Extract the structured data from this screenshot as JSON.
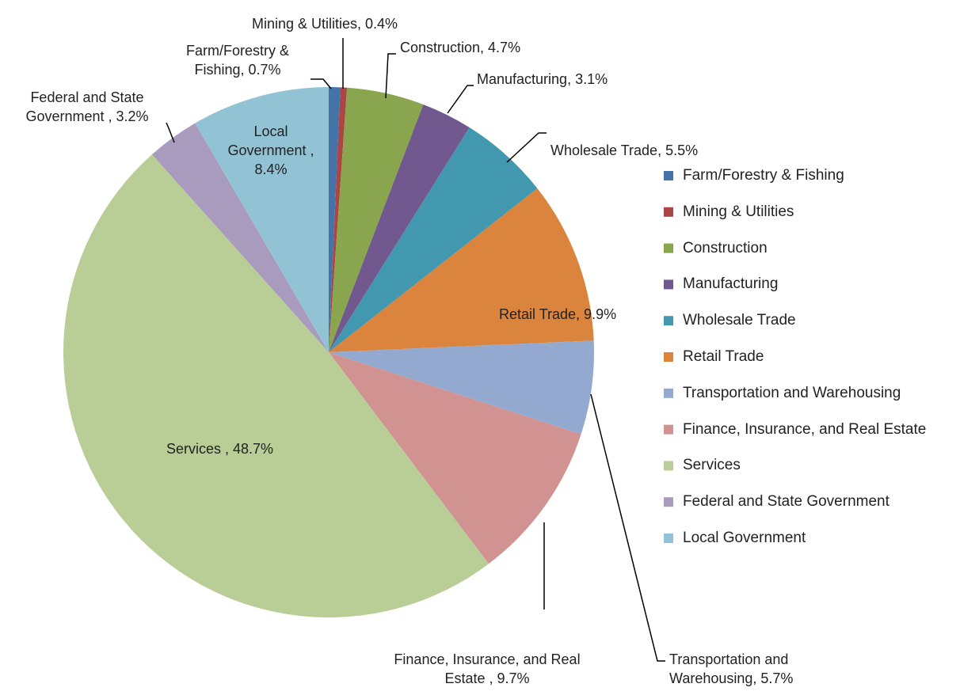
{
  "chart_data": {
    "type": "pie",
    "categories": [
      "Farm/Forestry & Fishing",
      "Mining & Utilities",
      "Construction",
      "Manufacturing",
      "Wholesale Trade",
      "Retail Trade",
      "Transportation and Warehousing",
      "Finance, Insurance, and Real Estate",
      "Services",
      "Federal and State Government",
      "Local Government"
    ],
    "values": [
      0.7,
      0.4,
      4.7,
      3.1,
      5.5,
      9.9,
      5.7,
      9.7,
      48.7,
      3.2,
      8.4
    ],
    "value_labels": [
      "Farm/Forestry & Fishing, 0.7%",
      "Mining & Utilities, 0.4%",
      "Construction, 4.7%",
      "Manufacturing, 3.1%",
      "Wholesale Trade, 5.5%",
      "Retail Trade, 9.9%",
      "Transportation and Warehousing, 5.7%",
      "Finance, Insurance, and Real Estate , 9.7%",
      "Services , 48.7%",
      "Federal and State Government , 3.2%",
      "Local Government , 8.4%"
    ],
    "colors": [
      "#4572a7",
      "#aa4643",
      "#89a54e",
      "#71588f",
      "#4198af",
      "#db843d",
      "#93a9cf",
      "#d19392",
      "#b9cd96",
      "#a99bbd",
      "#92c3d5"
    ],
    "legend": "right"
  }
}
